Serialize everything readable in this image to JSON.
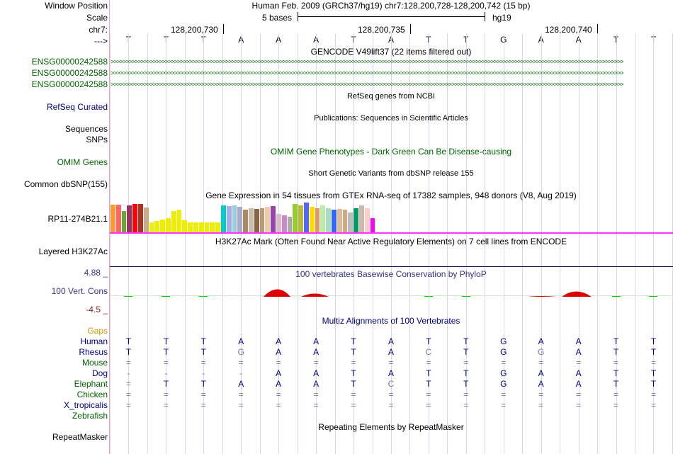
{
  "labels": {
    "window_position": "Window Position",
    "scale": "Scale",
    "chrom": "chr7:",
    "arrow": "--->",
    "genes": [
      "ENSG00000242588",
      "ENSG00000242588",
      "ENSG00000242588"
    ],
    "refseq": "RefSeq Curated",
    "sequences": "Sequences",
    "snps": "SNPs",
    "omim": "OMIM Genes",
    "dbsnp": "Common dbSNP(155)",
    "gtex": "RP11-274B21.1",
    "h3k27ac": "Layered H3K27Ac",
    "phylop_max": "4.88 _",
    "cons": "100 Vert. Cons",
    "phylop_min": "-4.5 _",
    "gaps": "Gaps",
    "species": [
      "Human",
      "Rhesus",
      "Mouse",
      "Dog",
      "Elephant",
      "Chicken",
      "X_tropicalis",
      "Zebrafish"
    ],
    "repeatmasker": "RepeatMasker"
  },
  "header": {
    "position": "Human Feb. 2009 (GRCh37/hg19)   chr7:128,200,728-128,200,742 (15 bp)",
    "scale_text": "5 bases",
    "assembly": "hg19",
    "coord_1": "128,200,730",
    "coord_2": "128,200,735",
    "coord_3": "128,200,740"
  },
  "bases": [
    "T",
    "T",
    "T",
    "A",
    "A",
    "A",
    "T",
    "A",
    "T",
    "T",
    "G",
    "A",
    "A",
    "T",
    "T"
  ],
  "tracks": {
    "gencode": "GENCODE V49lift37 (22 items filtered out)",
    "refseq": "RefSeq genes from NCBI",
    "publications": "Publications: Sequences in Scientific Articles",
    "omim": "OMIM Gene Phenotypes - Dark Green Can Be Disease-causing",
    "dbsnp": "Short Genetic Variants from dbSNP release 155",
    "gtex": "Gene Expression in 54 tissues from GTEx RNA-seq of 17382 samples, 948 donors (V8, Aug 2019)",
    "h3k27ac": "H3K27Ac Mark (Often Found Near Active Regulatory Elements) on 7 cell lines from ENCODE",
    "phylop": "100 vertebrates Basewise Conservation by PhyloP",
    "multiz": "Multiz Alignments of 100 Vertebrates",
    "repeatmasker": "Repeating Elements by RepeatMasker"
  },
  "alignment": [
    [
      "T",
      "T",
      "T",
      "A",
      "A",
      "A",
      "T",
      "A",
      "T",
      "T",
      "G",
      "A",
      "A",
      "T",
      "T"
    ],
    [
      "T",
      "T",
      "T",
      "G",
      "A",
      "A",
      "T",
      "A",
      "C",
      "T",
      "G",
      "G",
      "A",
      "T",
      "T"
    ],
    [
      "=",
      "=",
      "=",
      "=",
      "=",
      "=",
      "=",
      "=",
      "=",
      "=",
      "=",
      "=",
      "=",
      "=",
      "="
    ],
    [
      "-",
      "-",
      "-",
      "-",
      "A",
      "A",
      "T",
      "A",
      "T",
      "T",
      "G",
      "A",
      "A",
      "T",
      "T"
    ],
    [
      "=",
      "T",
      "T",
      "A",
      "A",
      "A",
      "T",
      "C",
      "T",
      "T",
      "G",
      "A",
      "A",
      "T",
      "T"
    ],
    [
      "=",
      "=",
      "=",
      "=",
      "=",
      "=",
      "=",
      "=",
      "=",
      "=",
      "=",
      "=",
      "=",
      "=",
      "="
    ],
    [
      "=",
      "=",
      "=",
      "=",
      "=",
      "=",
      "=",
      "=",
      "=",
      "=",
      "=",
      "=",
      "=",
      "=",
      "="
    ],
    [
      "",
      "",
      "",
      "",
      "",
      "",
      "",
      "",
      "",
      "",
      "",
      "",
      "",
      "",
      ""
    ]
  ],
  "gtex_values": [
    39,
    39,
    30,
    38,
    40,
    40,
    35,
    14,
    16,
    18,
    20,
    30,
    32,
    17,
    14,
    14,
    14,
    14,
    14,
    14,
    38,
    37,
    38,
    36,
    32,
    34,
    33,
    34,
    36,
    37,
    26,
    24,
    22,
    40,
    38,
    42,
    36,
    34,
    38,
    34,
    32,
    33,
    32,
    28,
    34,
    38,
    34,
    20
  ],
  "gtex_colors": [
    "#ff9933",
    "#ff6666",
    "#66aa33",
    "#993366",
    "#ff0000",
    "#aa3322",
    "#ccaa88",
    "#eeee00",
    "#eeee00",
    "#eeee00",
    "#eeee00",
    "#eeee00",
    "#eeee00",
    "#eeee00",
    "#eeee00",
    "#eeee00",
    "#eeee00",
    "#eeee00",
    "#eeee00",
    "#eeee00",
    "#00cccc",
    "#aaaaee",
    "#99ccdd",
    "#aaaacc",
    "#aa8866",
    "#ccbbaa",
    "#886644",
    "#bb9977",
    "#eeccaa",
    "#9944aa",
    "#ddbbcc",
    "#cc88cc",
    "#aaaaaa",
    "#99cc33",
    "#bbbb33",
    "#5566ff",
    "#ffdd00",
    "#dd9966",
    "#bbeeaa",
    "#aaddbb",
    "#3366ff",
    "#ddbb99",
    "#ccaa88",
    "#bbbbbb",
    "#009966",
    "#ccbbaa",
    "#ffcccc",
    "#ff00ff"
  ],
  "phylop_values": [
    0.4,
    0.1,
    0.1,
    0,
    1.8,
    0.7,
    0,
    0,
    0.1,
    0.4,
    0,
    0.1,
    1.1,
    0.4,
    0.5
  ],
  "colors": {
    "gene": "#006400",
    "navy": "#000080",
    "gaps": "#cc9900",
    "mismatch": "#7777aa",
    "pos": "#00cc00",
    "neg": "#dd0000",
    "magenta": "#ff33ff"
  }
}
